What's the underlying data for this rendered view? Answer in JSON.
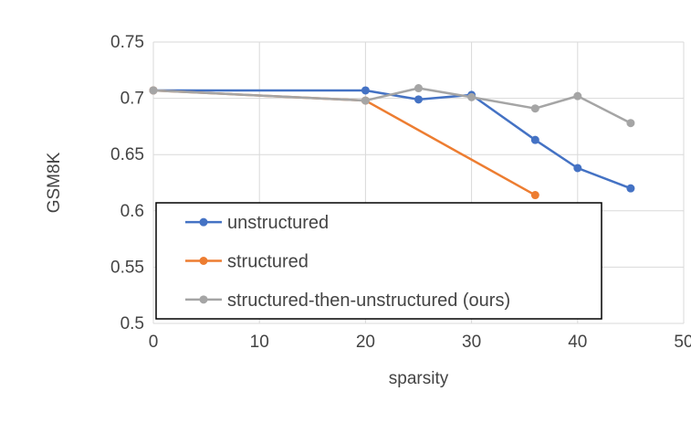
{
  "chart_data": {
    "type": "line",
    "title": "",
    "xlabel": "sparsity",
    "ylabel": "GSM8K",
    "xlim": [
      0,
      50
    ],
    "ylim": [
      0.5,
      0.75
    ],
    "x_ticks": {
      "values": [
        0,
        10,
        20,
        30,
        40,
        50
      ],
      "labels": [
        "0",
        "10",
        "20",
        "30",
        "40",
        "50"
      ]
    },
    "y_ticks": {
      "values": [
        0.5,
        0.55,
        0.6,
        0.65,
        0.7,
        0.75
      ],
      "labels": [
        "0.5",
        "0.55",
        "0.6",
        "0.65",
        "0.7",
        "0.75"
      ]
    },
    "grid": true,
    "legend": {
      "position": "overlay-bottom-left",
      "border_color": "#000000",
      "background": "#FFFFFF"
    },
    "colors": {
      "gridline": "#D9D9D9",
      "text": "#444444",
      "plot_background": "#FFFFFF"
    },
    "series": [
      {
        "name": "unstructured",
        "color": "#4472C4",
        "marker": "circle",
        "x": [
          0,
          20,
          25,
          30,
          36,
          40,
          45
        ],
        "y": [
          0.707,
          0.707,
          0.699,
          0.703,
          0.663,
          0.638,
          0.62
        ]
      },
      {
        "name": "structured",
        "color": "#ED7D31",
        "marker": "circle",
        "x": [
          0,
          20,
          36
        ],
        "y": [
          0.707,
          0.698,
          0.614
        ]
      },
      {
        "name": "structured-then-unstructured (ours)",
        "color": "#A5A5A5",
        "marker": "circle",
        "x": [
          0,
          20,
          25,
          30,
          36,
          40,
          45
        ],
        "y": [
          0.707,
          0.698,
          0.709,
          0.701,
          0.691,
          0.702,
          0.678
        ]
      }
    ]
  }
}
